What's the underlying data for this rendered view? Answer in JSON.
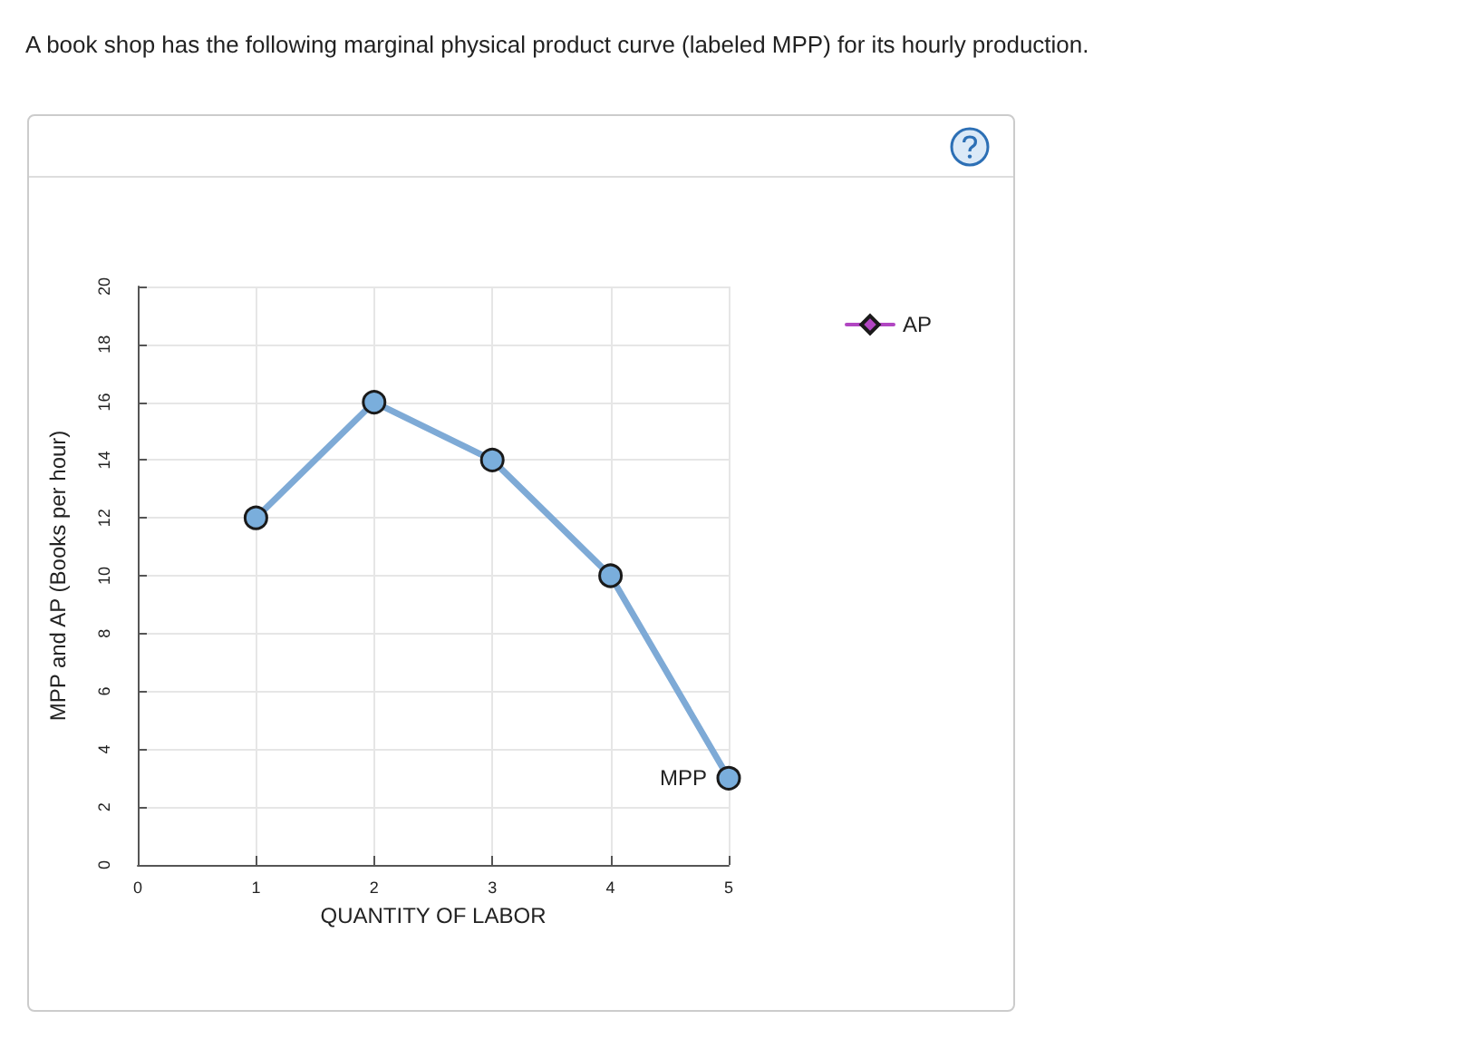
{
  "chart_data": {
    "type": "line",
    "title": "A book shop has the following marginal physical product curve (labeled MPP) for its hourly production.",
    "xlabel": "QUANTITY OF LABOR",
    "ylabel": "MPP and AP (Books per hour)",
    "x": [
      1,
      2,
      3,
      4,
      5
    ],
    "series": [
      {
        "color": "#7eaad6",
        "values": [
          12,
          16,
          14,
          10,
          3
        ],
        "marker": "circle"
      },
      {
        "name": "AP",
        "color": "#b146c2",
        "values": [
          null,
          null,
          null,
          null,
          null
        ],
        "marker": "diamond"
      }
    ],
    "annotations": [
      {
        "text": "MPP",
        "x": 5,
        "y": 3
      }
    ],
    "xlim": [
      0,
      5
    ],
    "xticks": [
      0,
      1,
      2,
      3,
      4,
      5
    ],
    "ylim": [
      0,
      20
    ],
    "yticks": [
      0,
      2,
      4,
      6,
      8,
      10,
      12,
      14,
      16,
      18,
      20
    ],
    "grid": true,
    "legend": "top right",
    "line_style": "solid"
  }
}
